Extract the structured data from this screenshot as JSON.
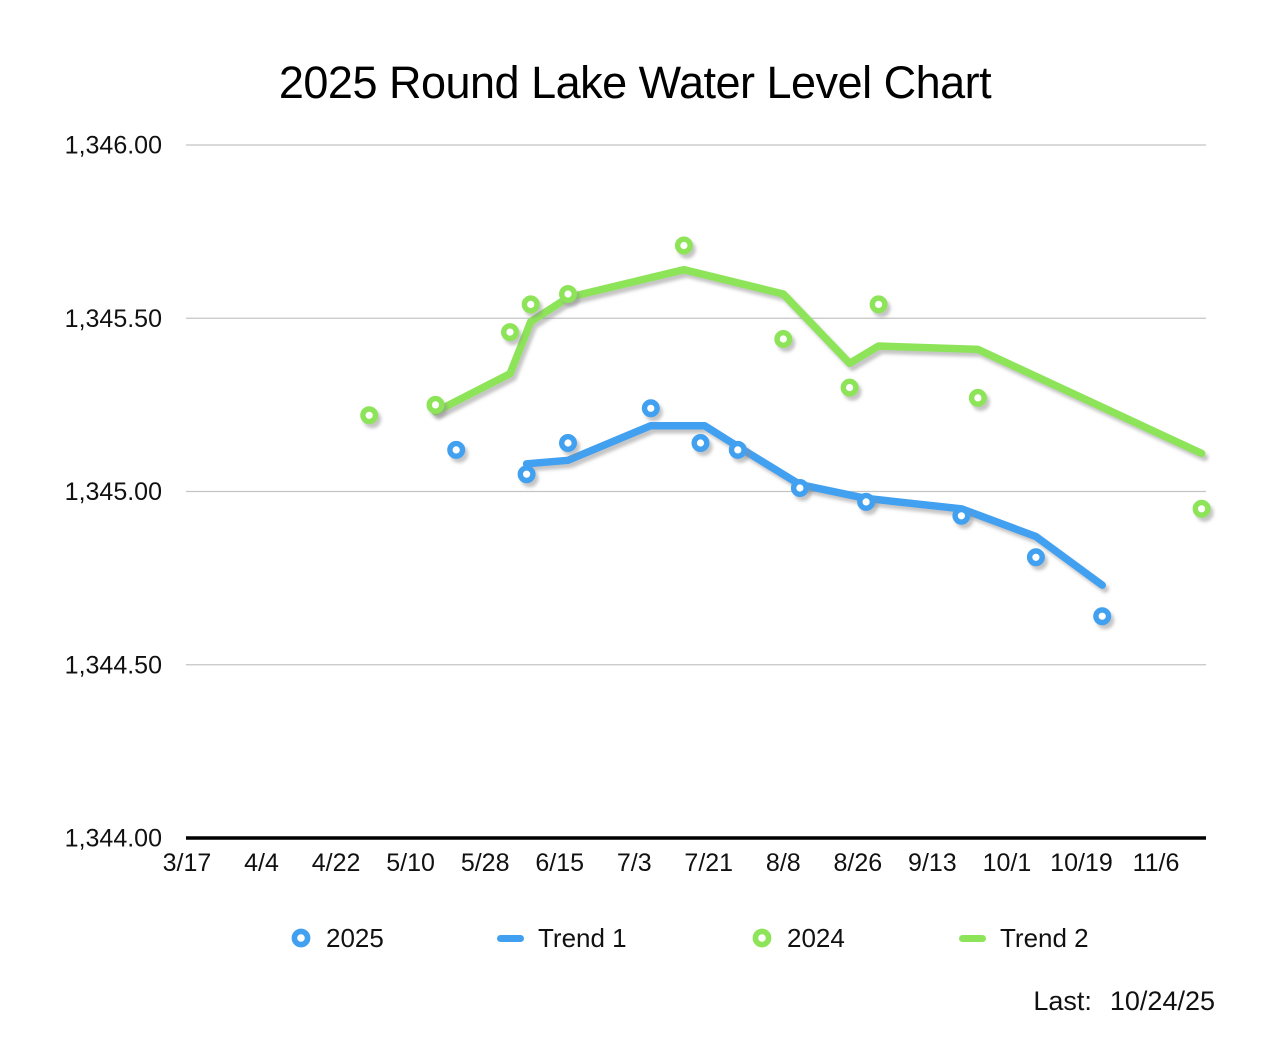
{
  "title": "2025 Round Lake Water Level Chart",
  "footer": {
    "label": "Last:",
    "value": "10/24/25"
  },
  "colors": {
    "series_2025": "#42A0F0",
    "series_2024": "#8DE459",
    "gridline": "#C4C4C4",
    "axis": "#000000",
    "text": "#111111",
    "shadow": "#8A8A8A"
  },
  "legend": {
    "items": [
      {
        "label": "2025",
        "marker": "ring",
        "color": "#42A0F0"
      },
      {
        "label": "Trend 1",
        "marker": "dash",
        "color": "#42A0F0"
      },
      {
        "label": "2024",
        "marker": "ring",
        "color": "#8DE459"
      },
      {
        "label": "Trend 2",
        "marker": "dash",
        "color": "#8DE459"
      }
    ]
  },
  "chart_data": {
    "type": "scatter",
    "title": "2025 Round Lake Water Level Chart",
    "xlabel": "",
    "ylabel": "",
    "grid": true,
    "legend_position": "bottom",
    "ylim": [
      1344.0,
      1346.0
    ],
    "y_ticks": [
      {
        "value": 1346.0,
        "label": "1,346.00"
      },
      {
        "value": 1345.5,
        "label": "1,345.50"
      },
      {
        "value": 1345.0,
        "label": "1,345.00"
      },
      {
        "value": 1344.5,
        "label": "1,344.50"
      },
      {
        "value": 1344.0,
        "label": "1,344.00",
        "axis": true
      }
    ],
    "x_ticks": [
      "3/17",
      "4/4",
      "4/22",
      "5/10",
      "5/28",
      "6/15",
      "7/3",
      "7/21",
      "8/8",
      "8/26",
      "9/13",
      "10/1",
      "10/19",
      "11/6"
    ],
    "x_tick_interval_days": 18,
    "series": [
      {
        "name": "2025",
        "type": "scatter",
        "color": "#42A0F0",
        "points": [
          [
            "5/21",
            1345.12
          ],
          [
            "6/7",
            1345.05
          ],
          [
            "6/17",
            1345.14
          ],
          [
            "7/7",
            1345.24
          ],
          [
            "7/19",
            1345.14
          ],
          [
            "7/28",
            1345.12
          ],
          [
            "8/12",
            1345.01
          ],
          [
            "8/28",
            1344.97
          ],
          [
            "9/20",
            1344.93
          ],
          [
            "10/8",
            1344.81
          ],
          [
            "10/24",
            1344.64
          ]
        ]
      },
      {
        "name": "Trend 1",
        "type": "line",
        "color": "#42A0F0",
        "points": [
          [
            "6/7",
            1345.08
          ],
          [
            "6/17",
            1345.09
          ],
          [
            "7/7",
            1345.19
          ],
          [
            "7/20",
            1345.19
          ],
          [
            "7/28",
            1345.13
          ],
          [
            "8/12",
            1345.02
          ],
          [
            "8/28",
            1344.98
          ],
          [
            "9/20",
            1344.95
          ],
          [
            "10/8",
            1344.87
          ],
          [
            "10/24",
            1344.73
          ]
        ]
      },
      {
        "name": "2024",
        "type": "scatter",
        "color": "#8DE459",
        "points": [
          [
            "4/30",
            1345.22
          ],
          [
            "5/16",
            1345.25
          ],
          [
            "6/3",
            1345.46
          ],
          [
            "6/8",
            1345.54
          ],
          [
            "6/17",
            1345.57
          ],
          [
            "7/15",
            1345.71
          ],
          [
            "8/8",
            1345.44
          ],
          [
            "8/24",
            1345.3
          ],
          [
            "8/31",
            1345.54
          ],
          [
            "9/24",
            1345.27
          ],
          [
            "11/17",
            1344.95
          ]
        ]
      },
      {
        "name": "Trend 2",
        "type": "line",
        "color": "#8DE459",
        "points": [
          [
            "5/16",
            1345.23
          ],
          [
            "6/3",
            1345.34
          ],
          [
            "6/8",
            1345.49
          ],
          [
            "6/17",
            1345.56
          ],
          [
            "7/15",
            1345.64
          ],
          [
            "8/8",
            1345.57
          ],
          [
            "8/24",
            1345.37
          ],
          [
            "8/31",
            1345.42
          ],
          [
            "9/24",
            1345.41
          ],
          [
            "11/17",
            1345.11
          ]
        ]
      }
    ]
  }
}
